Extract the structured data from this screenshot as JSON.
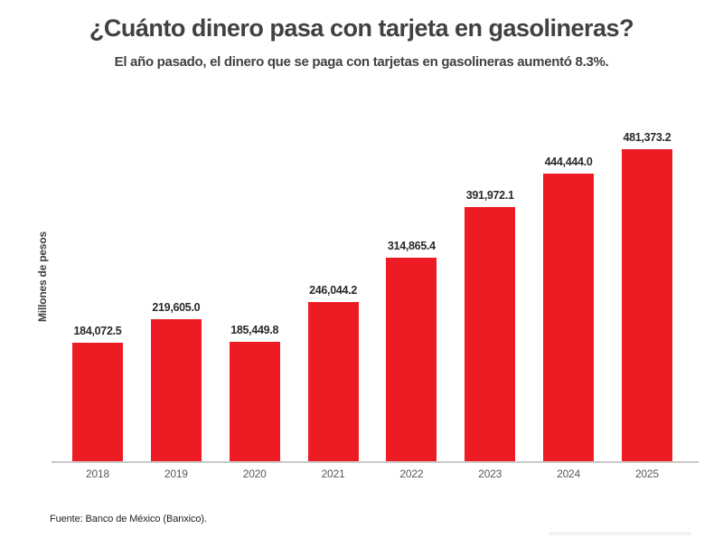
{
  "header": {
    "title": "¿Cuánto dinero pasa con tarjeta en gasolineras?",
    "subtitle": "El año pasado, el dinero que se paga con tarjetas en gasolineras aumentó 8.3%."
  },
  "chart_data": {
    "type": "bar",
    "title": "¿Cuánto dinero pasa con tarjeta en gasolineras?",
    "subtitle": "El año pasado, el dinero que se paga con tarjetas en gasolineras aumentó 8.3%.",
    "categories": [
      "2018",
      "2019",
      "2020",
      "2021",
      "2022",
      "2023",
      "2024",
      "2025"
    ],
    "values": [
      184072.5,
      219605.0,
      185449.8,
      246044.2,
      314865.4,
      391972.1,
      444444.0,
      481373.2
    ],
    "value_labels": [
      "184,072.5",
      "219,605.0",
      "185,449.8",
      "246,044.2",
      "314,865.4",
      "391,972.1",
      "444,444.0",
      "481,373.2"
    ],
    "xlabel": "",
    "ylabel": "Millones de pesos",
    "ylim": [
      0,
      500000
    ],
    "grid": false,
    "legend": false,
    "bar_color": "#ed1c24"
  },
  "footer": {
    "source": "Fuente: Banco de México (Banxico)."
  },
  "colors": {
    "accent_red": "#ed1c24",
    "title_gray": "#414042",
    "value_label_dark": "#2b2829",
    "tick_gray": "#58595b",
    "axis_line_gray": "#c9c9c9"
  }
}
